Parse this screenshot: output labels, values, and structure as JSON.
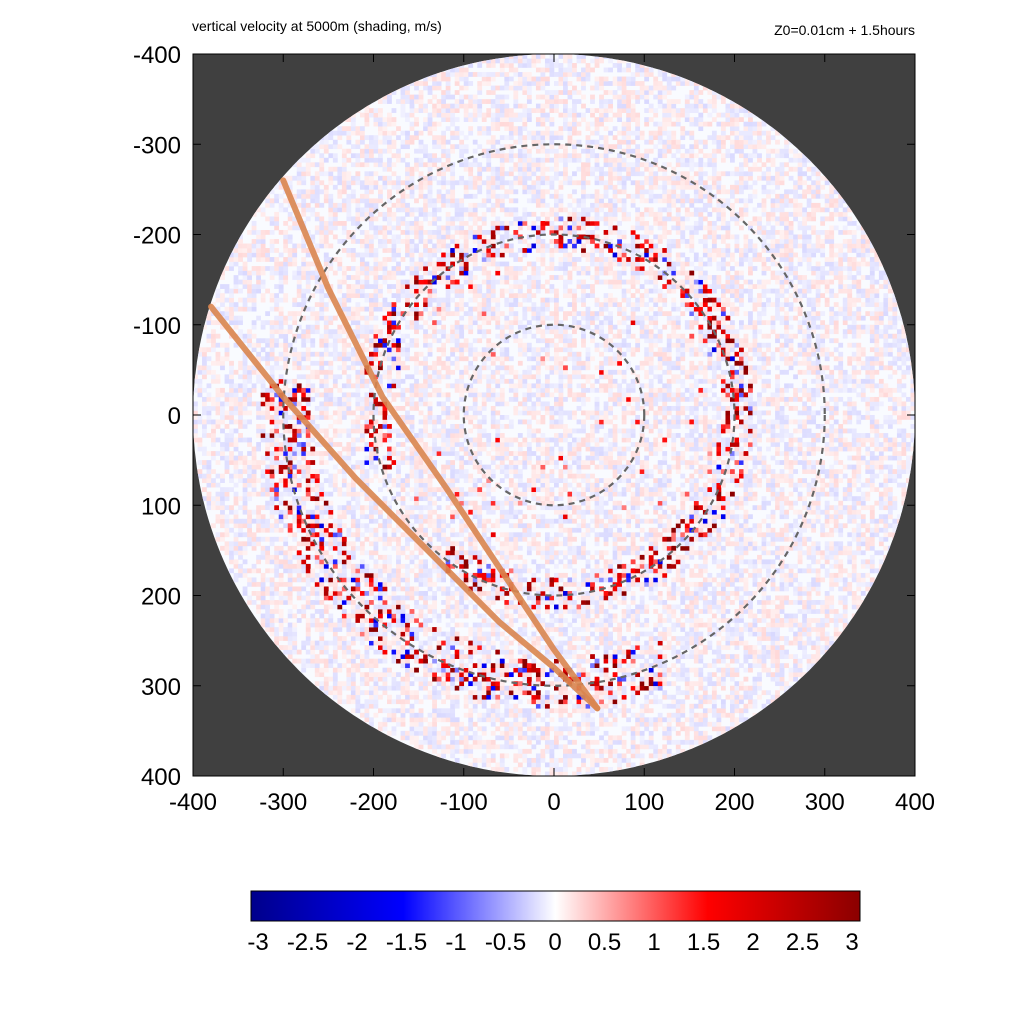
{
  "chart_data": {
    "type": "heatmap",
    "title": "vertical velocity at 5000m (shading, m/s)",
    "subtitle": "Z0=0.01cm  + 1.5hours",
    "xlabel": "",
    "ylabel": "",
    "xlim": [
      -400,
      400
    ],
    "ylim": [
      -400,
      400
    ],
    "x_ticks": [
      -400,
      -300,
      -200,
      -100,
      0,
      100,
      200,
      300,
      400
    ],
    "y_ticks": [
      -400,
      -300,
      -200,
      -100,
      0,
      100,
      200,
      300,
      400
    ],
    "x_tick_labels": [
      "-400",
      "-300",
      "-200",
      "-100",
      "0",
      "100",
      "200",
      "300",
      "400"
    ],
    "y_tick_labels": [
      "400",
      "300",
      "200",
      "100",
      "0",
      "-100",
      "-200",
      "-300",
      "-400"
    ],
    "domain_radius": 400,
    "outside_domain_color": "#404040",
    "reference_circle_radii": [
      100,
      200,
      300
    ],
    "colorbar": {
      "min": -3,
      "max": 3,
      "ticks": [
        "-3",
        "-2.5",
        "-2",
        "-1.5",
        "-1",
        "-0.5",
        "0",
        "0.5",
        "1",
        "1.5",
        "2",
        "2.5",
        "3"
      ],
      "colors": [
        "#00008b",
        "#0000ff",
        "#ffffff",
        "#ff0000",
        "#8b0000"
      ]
    },
    "tracks": [
      {
        "color": "#d9854f",
        "points": [
          [
            -300,
            260
          ],
          [
            -250,
            140
          ],
          [
            -190,
            20
          ],
          [
            -120,
            -80
          ],
          [
            -40,
            -200
          ],
          [
            0,
            -260
          ],
          [
            48,
            -325
          ]
        ]
      },
      {
        "color": "#d9854f",
        "points": [
          [
            -380,
            120
          ],
          [
            -300,
            20
          ],
          [
            -220,
            -70
          ],
          [
            -140,
            -150
          ],
          [
            -60,
            -230
          ],
          [
            0,
            -280
          ],
          [
            48,
            -325
          ]
        ]
      }
    ],
    "updraft_features": [
      {
        "name": "eyewall ring",
        "radius": 200,
        "values_range": [
          -2,
          3
        ]
      },
      {
        "name": "outer rainband",
        "radius_range": [
          280,
          330
        ],
        "values_range": [
          -2,
          3
        ]
      }
    ]
  }
}
